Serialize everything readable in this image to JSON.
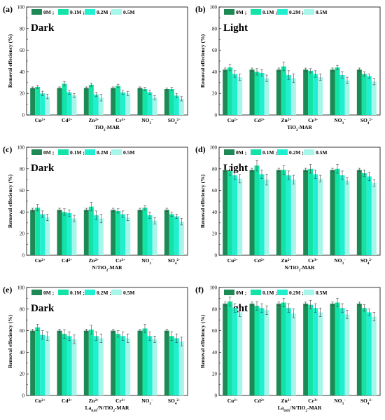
{
  "colors": [
    "#1d8a55",
    "#14e3a7",
    "#1ff0d0",
    "#a6f6ea"
  ],
  "chart_data": [
    {
      "type": "bar",
      "panel": "(a)",
      "condition": "Dark",
      "categories": [
        "Cu2+",
        "Cd2+",
        "Zn2+",
        "Cr3+",
        "NO3-",
        "SO42-"
      ],
      "xlabel": "TiO2-MAR",
      "ylabel": "Removal effeciency (%)",
      "ylim": [
        0,
        100
      ],
      "yticks": [
        "0",
        "20",
        "40",
        "60",
        "80",
        "100"
      ],
      "legend": [
        "0M ;",
        "0.1M ;",
        "0.2M ;",
        "0.5M"
      ],
      "series": [
        {
          "name": "0M",
          "values": [
            25,
            25,
            25,
            25,
            25,
            24
          ],
          "errors": [
            1,
            1,
            1,
            1,
            1,
            1
          ]
        },
        {
          "name": "0.1M",
          "values": [
            26,
            29,
            28,
            27,
            24,
            24
          ],
          "errors": [
            1.5,
            2,
            1.5,
            1.5,
            1.5,
            1.5
          ]
        },
        {
          "name": "0.2M",
          "values": [
            20,
            21,
            19,
            21,
            21,
            18
          ],
          "errors": [
            2,
            2,
            2,
            2,
            2,
            2
          ]
        },
        {
          "name": "0.5M",
          "values": [
            17,
            18,
            16,
            20,
            16,
            15
          ],
          "errors": [
            2,
            2,
            3,
            2,
            2,
            2
          ]
        }
      ]
    },
    {
      "type": "bar",
      "panel": "(b)",
      "condition": "Light",
      "categories": [
        "Cu2+",
        "Cd2+",
        "Zn2+",
        "Cr3+",
        "NO3-",
        "SO42-"
      ],
      "xlabel": "TiO2-MAR",
      "ylabel": "Removal effeciency (%)",
      "ylim": [
        0,
        100
      ],
      "yticks": [
        "0",
        "20",
        "40",
        "60",
        "80",
        "100"
      ],
      "legend": [
        "0M ;",
        "0.1M ;",
        "0.2M ;",
        "0.5M"
      ],
      "series": [
        {
          "name": "0M",
          "values": [
            42,
            42,
            42,
            42,
            42,
            42
          ],
          "errors": [
            1.5,
            1.5,
            1.5,
            1.5,
            1.5,
            1.5
          ]
        },
        {
          "name": "0.1M",
          "values": [
            44,
            40,
            45,
            41,
            44,
            38
          ],
          "errors": [
            3,
            3,
            4,
            2,
            2,
            2
          ]
        },
        {
          "name": "0.2M",
          "values": [
            38,
            39,
            37,
            38,
            37,
            36
          ],
          "errors": [
            3,
            3,
            4,
            3,
            3,
            2
          ]
        },
        {
          "name": "0.5M",
          "values": [
            35,
            34,
            34,
            35,
            32,
            31
          ],
          "errors": [
            3,
            3,
            4,
            3,
            3,
            3
          ]
        }
      ]
    },
    {
      "type": "bar",
      "panel": "(c)",
      "condition": "Dark",
      "categories": [
        "Cu2+",
        "Cd2+",
        "Zn2+",
        "Cr3+",
        "NO3-",
        "SO42-"
      ],
      "xlabel": "N/TiO2-MAR",
      "ylabel": "Removal effeciency (%)",
      "ylim": [
        0,
        100
      ],
      "yticks": [
        "0",
        "20",
        "40",
        "60",
        "80",
        "100"
      ],
      "legend": [
        "0M ;",
        "0.1M ;",
        "0.2M ;",
        "0.5M"
      ],
      "series": [
        {
          "name": "0M",
          "values": [
            42,
            42,
            42,
            42,
            42,
            42
          ],
          "errors": [
            1.5,
            1.5,
            1.5,
            1.5,
            1.5,
            1.5
          ]
        },
        {
          "name": "0.1M",
          "values": [
            44,
            40,
            45,
            41,
            44,
            38
          ],
          "errors": [
            3,
            3,
            4,
            2,
            2,
            2
          ]
        },
        {
          "name": "0.2M",
          "values": [
            38,
            39,
            37,
            38,
            37,
            36
          ],
          "errors": [
            3,
            3,
            4,
            3,
            3,
            2
          ]
        },
        {
          "name": "0.5M",
          "values": [
            35,
            34,
            34,
            35,
            32,
            31
          ],
          "errors": [
            3,
            3,
            4,
            3,
            3,
            3
          ]
        }
      ]
    },
    {
      "type": "bar",
      "panel": "(d)",
      "condition": "Light",
      "categories": [
        "Cu2+",
        "Cd2+",
        "Zn2+",
        "Cr3+",
        "NO3-",
        "SO42-"
      ],
      "xlabel": "N/TiO2-MAR",
      "ylabel": "Removal effeciency (%)",
      "ylim": [
        0,
        100
      ],
      "yticks": [
        "0",
        "20",
        "40",
        "60",
        "80",
        "100"
      ],
      "legend": [
        "0M ;",
        "0.1M ;",
        "0.2M ;",
        "0.5M"
      ],
      "series": [
        {
          "name": "0M",
          "values": [
            79,
            79,
            79,
            79,
            79,
            79
          ],
          "errors": [
            1.5,
            1.5,
            1.5,
            1.5,
            1.5,
            1.5
          ]
        },
        {
          "name": "0.1M",
          "values": [
            78,
            83,
            79,
            80,
            80,
            76
          ],
          "errors": [
            4,
            5,
            4,
            4,
            4,
            3
          ]
        },
        {
          "name": "0.2M",
          "values": [
            74,
            75,
            74,
            75,
            74,
            73
          ],
          "errors": [
            4,
            4,
            4,
            4,
            4,
            4
          ]
        },
        {
          "name": "0.5M",
          "values": [
            71,
            70,
            70,
            71,
            69,
            67
          ],
          "errors": [
            4,
            5,
            4,
            3,
            3,
            3
          ]
        }
      ]
    },
    {
      "type": "bar",
      "panel": "(e)",
      "condition": "Dark",
      "categories": [
        "Cu2+",
        "Cd2+",
        "Zn2+",
        "Cr3+",
        "NO3-",
        "SO42-"
      ],
      "xlabel": "La0.05/N/TiO2-MAR",
      "ylabel": "Removal effeciency (%)",
      "ylim": [
        0,
        100
      ],
      "yticks": [
        "0",
        "20",
        "40",
        "60",
        "80",
        "100"
      ],
      "legend": [
        "0M ;",
        "0.1M ;",
        "0.2M ;",
        "0.5M"
      ],
      "series": [
        {
          "name": "0M",
          "values": [
            60,
            60,
            60,
            60,
            60,
            60
          ],
          "errors": [
            1.5,
            1.5,
            1.5,
            1.5,
            1.5,
            1.5
          ]
        },
        {
          "name": "0.1M",
          "values": [
            63,
            57,
            61,
            57,
            62,
            55
          ],
          "errors": [
            3,
            4,
            4,
            3,
            4,
            4
          ]
        },
        {
          "name": "0.2M",
          "values": [
            56,
            55,
            55,
            55,
            55,
            53
          ],
          "errors": [
            4,
            4,
            4,
            4,
            4,
            4
          ]
        },
        {
          "name": "0.5M",
          "values": [
            55,
            52,
            53,
            53,
            52,
            50
          ],
          "errors": [
            4,
            4,
            4,
            4,
            3,
            4
          ]
        }
      ]
    },
    {
      "type": "bar",
      "panel": "(f)",
      "condition": "Light",
      "categories": [
        "Cu2+",
        "Cd2+",
        "Zn2+",
        "Cr3+",
        "NO3-",
        "SO42-"
      ],
      "xlabel": "La0.05/N/TiO2-MAR",
      "ylabel": "Removal effeciency (%)",
      "ylim": [
        0,
        100
      ],
      "yticks": [
        "0",
        "20",
        "40",
        "60",
        "80",
        "100"
      ],
      "legend": [
        "0M ;",
        "0.1M ;",
        "0.2M ;",
        "0.5M"
      ],
      "series": [
        {
          "name": "0M",
          "values": [
            85,
            85,
            85,
            85,
            85,
            85
          ],
          "errors": [
            1.5,
            1.5,
            1.5,
            1.5,
            1.5,
            1.5
          ]
        },
        {
          "name": "0.1M",
          "values": [
            87,
            83,
            86,
            84,
            86,
            81
          ],
          "errors": [
            4,
            4,
            4,
            4,
            4,
            3
          ]
        },
        {
          "name": "0.2M",
          "values": [
            81,
            81,
            81,
            81,
            81,
            77
          ],
          "errors": [
            4,
            4,
            4,
            4,
            4,
            3
          ]
        },
        {
          "name": "0.5M",
          "values": [
            77,
            79,
            76,
            77,
            75,
            73
          ],
          "errors": [
            4,
            4,
            4,
            4,
            4,
            4
          ]
        }
      ]
    }
  ]
}
